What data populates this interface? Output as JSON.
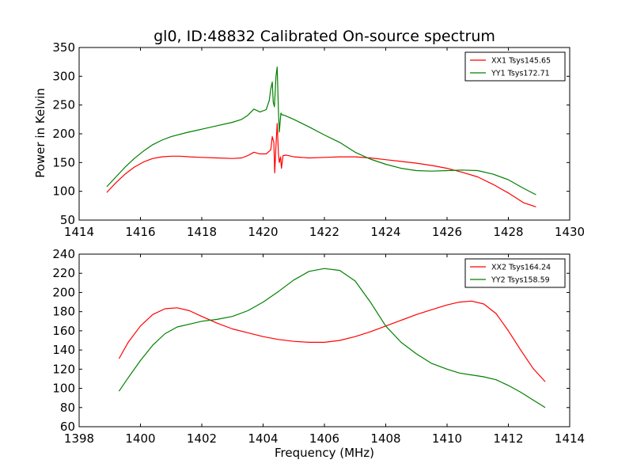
{
  "figure": {
    "title": "gl0, ID:48832 Calibrated On-source spectrum",
    "xlabel": "Frequency (MHz)",
    "ylabel": "Power in Kelvin"
  },
  "chart_data": [
    {
      "type": "line",
      "title": "gl0, ID:48832 Calibrated On-source spectrum",
      "xlabel": "",
      "ylabel": "Power in Kelvin",
      "xlim": [
        1414,
        1430
      ],
      "ylim": [
        50,
        350
      ],
      "xticks": [
        1414,
        1416,
        1418,
        1420,
        1422,
        1424,
        1426,
        1428,
        1430
      ],
      "yticks": [
        50,
        100,
        150,
        200,
        250,
        300,
        350
      ],
      "grid": false,
      "legend_position": "top-right",
      "series": [
        {
          "name": "XX1 Tsys145.65",
          "color": "#ff0000",
          "x": [
            1414.9,
            1415.2,
            1415.5,
            1415.8,
            1416.1,
            1416.4,
            1416.7,
            1417.0,
            1417.3,
            1417.6,
            1418.0,
            1418.5,
            1419.0,
            1419.3,
            1419.5,
            1419.7,
            1419.9,
            1420.1,
            1420.25,
            1420.3,
            1420.35,
            1420.38,
            1420.42,
            1420.46,
            1420.5,
            1420.53,
            1420.57,
            1420.6,
            1420.65,
            1420.75,
            1421.0,
            1421.5,
            1422.0,
            1422.5,
            1423.0,
            1423.5,
            1424.0,
            1424.5,
            1425.0,
            1425.5,
            1426.0,
            1426.5,
            1427.0,
            1427.5,
            1428.0,
            1428.5,
            1428.9
          ],
          "y": [
            98,
            115,
            130,
            142,
            151,
            157,
            160,
            161,
            161,
            160,
            159,
            158,
            157,
            158,
            162,
            168,
            165,
            165,
            172,
            195,
            185,
            132,
            180,
            218,
            165,
            150,
            160,
            140,
            162,
            163,
            160,
            158,
            159,
            160,
            160,
            158,
            155,
            152,
            149,
            145,
            140,
            133,
            125,
            112,
            97,
            80,
            73
          ]
        },
        {
          "name": "YY1 Tsys172.71",
          "color": "#008000",
          "x": [
            1414.9,
            1415.2,
            1415.5,
            1415.8,
            1416.1,
            1416.4,
            1416.7,
            1417.0,
            1417.5,
            1418.0,
            1418.5,
            1419.0,
            1419.3,
            1419.5,
            1419.7,
            1419.9,
            1420.1,
            1420.2,
            1420.25,
            1420.3,
            1420.33,
            1420.37,
            1420.42,
            1420.46,
            1420.5,
            1420.53,
            1420.58,
            1420.62,
            1420.7,
            1421.0,
            1421.5,
            1422.0,
            1422.5,
            1423.0,
            1423.5,
            1424.0,
            1424.5,
            1425.0,
            1425.5,
            1426.0,
            1426.5,
            1427.0,
            1427.5,
            1428.0,
            1428.5,
            1428.9
          ],
          "y": [
            108,
            125,
            142,
            157,
            170,
            181,
            189,
            195,
            202,
            208,
            214,
            220,
            225,
            232,
            243,
            238,
            242,
            258,
            278,
            290,
            255,
            247,
            300,
            316,
            240,
            203,
            236,
            233,
            232,
            225,
            212,
            198,
            185,
            168,
            156,
            147,
            140,
            136,
            135,
            136,
            137,
            136,
            130,
            120,
            105,
            94
          ]
        }
      ]
    },
    {
      "type": "line",
      "title": "",
      "xlabel": "Frequency (MHz)",
      "ylabel": "",
      "xlim": [
        1398,
        1414
      ],
      "ylim": [
        60,
        240
      ],
      "xticks": [
        1398,
        1400,
        1402,
        1404,
        1406,
        1408,
        1410,
        1412,
        1414
      ],
      "yticks": [
        60,
        80,
        100,
        120,
        140,
        160,
        180,
        200,
        220,
        240
      ],
      "grid": false,
      "legend_position": "top-right",
      "series": [
        {
          "name": "XX2 Tsys164.24",
          "color": "#ff0000",
          "x": [
            1399.3,
            1399.6,
            1400.0,
            1400.4,
            1400.8,
            1401.2,
            1401.6,
            1402.0,
            1402.5,
            1403.0,
            1403.5,
            1404.0,
            1404.5,
            1405.0,
            1405.5,
            1406.0,
            1406.5,
            1407.0,
            1407.5,
            1408.0,
            1408.5,
            1409.0,
            1409.5,
            1410.0,
            1410.4,
            1410.8,
            1411.2,
            1411.6,
            1412.0,
            1412.4,
            1412.8,
            1413.2
          ],
          "y": [
            131,
            148,
            165,
            177,
            183,
            184,
            181,
            175,
            168,
            162,
            158,
            154,
            151,
            149,
            148,
            148,
            150,
            154,
            159,
            165,
            171,
            177,
            182,
            187,
            190,
            191,
            188,
            178,
            160,
            140,
            121,
            107
          ]
        },
        {
          "name": "YY2 Tsys158.59",
          "color": "#008000",
          "x": [
            1399.3,
            1399.6,
            1400.0,
            1400.4,
            1400.8,
            1401.2,
            1401.6,
            1402.0,
            1402.5,
            1403.0,
            1403.5,
            1404.0,
            1404.5,
            1405.0,
            1405.5,
            1406.0,
            1406.5,
            1407.0,
            1407.5,
            1408.0,
            1408.5,
            1409.0,
            1409.5,
            1410.0,
            1410.4,
            1410.8,
            1411.2,
            1411.6,
            1412.0,
            1412.4,
            1412.8,
            1413.2
          ],
          "y": [
            97,
            111,
            129,
            145,
            157,
            164,
            167,
            170,
            172,
            175,
            181,
            190,
            201,
            213,
            222,
            225,
            223,
            212,
            190,
            165,
            148,
            136,
            126,
            120,
            116,
            114,
            112,
            109,
            103,
            96,
            88,
            80
          ]
        }
      ]
    }
  ]
}
